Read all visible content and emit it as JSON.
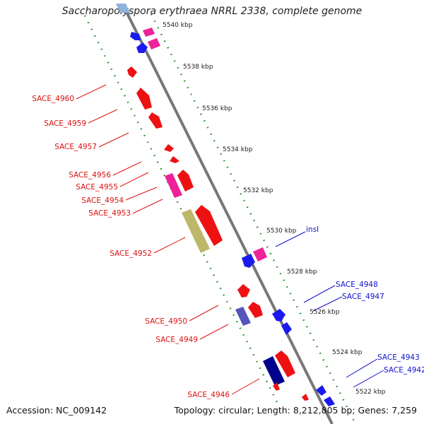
{
  "title": "Saccharopolyspora erythraea NRRL 2338, complete genome",
  "footer": {
    "accession": "Accession: NC_009142",
    "topology": "Topology: circular; Length: 8,212,805 bp; Genes: 7,259"
  },
  "map": {
    "scale_labels": [
      "5540 kbp",
      "5538 kbp",
      "5536 kbp",
      "5534 kbp",
      "5532 kbp",
      "5530 kbp",
      "5528 kbp",
      "5526 kbp",
      "5524 kbp",
      "5522 kbp"
    ],
    "left_genes": [
      "SACE_4960",
      "SACE_4959",
      "SACE_4957",
      "SACE_4956",
      "SACE_4955",
      "SACE_4954",
      "SACE_4953",
      "SACE_4952",
      "SACE_4950",
      "SACE_4949",
      "SACE_4946"
    ],
    "right_genes": [
      "insI",
      "SACE_4948",
      "SACE_4947",
      "SACE_4943",
      "SACE_4942"
    ],
    "colors": {
      "red_label": "#dd1111",
      "blue_label": "#1111cc",
      "gene_red": "#ee1111",
      "gene_pink": "#ee2299",
      "gene_blue": "#1a1aee",
      "gene_navy": "#00008b",
      "gene_khaki": "#bdb76b",
      "backbone": "#888888",
      "dots": "#118811"
    }
  }
}
